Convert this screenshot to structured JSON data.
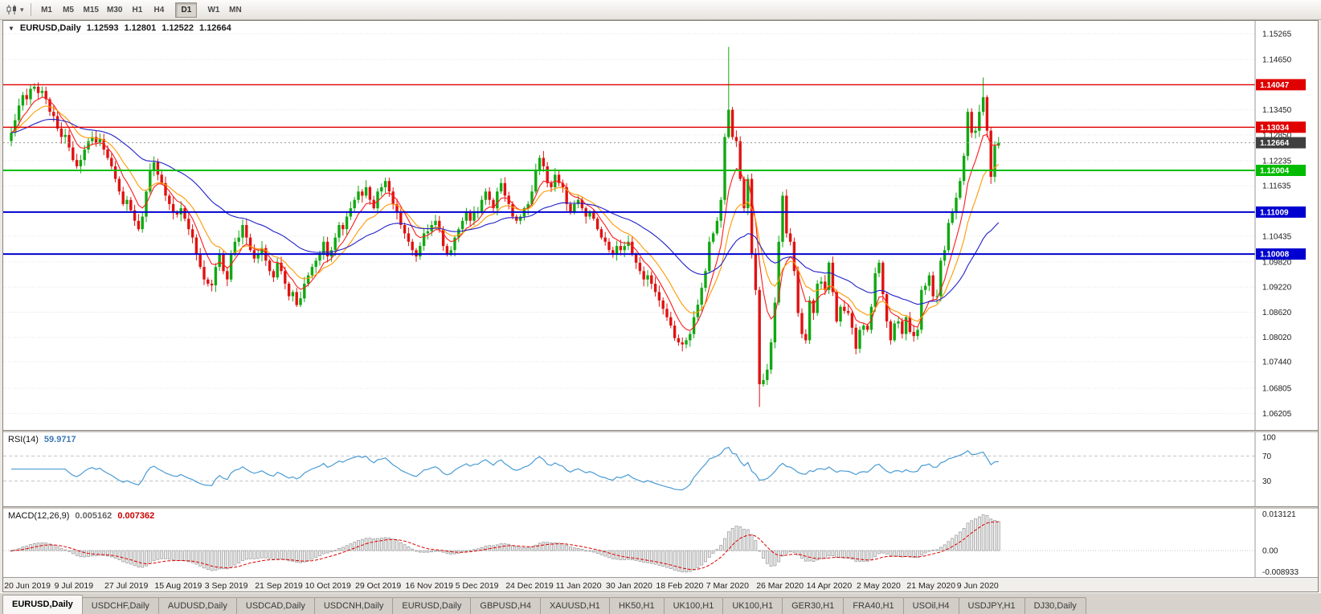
{
  "toolbar": {
    "chart_icon": "candlestick-chart-icon",
    "dropdown_icon": "▾",
    "timeframes": [
      "M1",
      "M5",
      "M15",
      "M30",
      "H1",
      "H4",
      "D1",
      "W1",
      "MN"
    ],
    "active_timeframe": "D1"
  },
  "main_header": {
    "dropdown_icon": "▼",
    "symbol": "EURUSD,Daily",
    "open": "1.12593",
    "high": "1.12801",
    "low": "1.12522",
    "close": "1.12664"
  },
  "tabs": {
    "active_index": 0,
    "items": [
      "EURUSD,Daily",
      "USDCHF,Daily",
      "AUDUSD,Daily",
      "USDCAD,Daily",
      "USDCNH,Daily",
      "EURUSD,Daily",
      "GBPUSD,H4",
      "XAUUSD,H1",
      "HK50,H1",
      "UK100,H1",
      "UK100,H1",
      "GER30,H1",
      "FRA40,H1",
      "USOil,H4",
      "USDJPY,H1",
      "DJ30,Daily"
    ],
    "note": "bottom chart tabs"
  },
  "chart_data": {
    "type": "candlestick",
    "symbol": "EURUSD",
    "timeframe": "Daily",
    "current": {
      "open": 1.12593,
      "high": 1.12801,
      "low": 1.12522,
      "close": 1.12664
    },
    "up_color": "#11a811",
    "down_color": "#e01212",
    "price_range": {
      "top": 1.1557,
      "bottom": 1.0581
    },
    "price_axis_labels": [
      1.15265,
      1.1465,
      1.1345,
      1.1285,
      1.12235,
      1.11635,
      1.10435,
      1.0982,
      1.0922,
      1.0862,
      1.0802,
      1.0744,
      1.06805,
      1.06205
    ],
    "horizontal_lines": [
      {
        "price": 1.14047,
        "color": "#e00000",
        "style": "solid",
        "width": 1.4
      },
      {
        "price": 1.13034,
        "color": "#e00000",
        "style": "solid",
        "width": 1.4
      },
      {
        "price": 1.12664,
        "color": "#9a9a9a",
        "style": "dotted",
        "width": 1,
        "tag_color": "#3f3f3f",
        "is_current_price": true
      },
      {
        "price": 1.12004,
        "color": "#00bb00",
        "style": "solid",
        "width": 2
      },
      {
        "price": 1.11009,
        "color": "#0000d0",
        "style": "solid",
        "width": 2
      },
      {
        "price": 1.10008,
        "color": "#0000d0",
        "style": "solid",
        "width": 2
      }
    ],
    "date_ticks": {
      "first_index": 4,
      "step": 13,
      "labels": [
        "20 Jun 2019",
        "9 Jul 2019",
        "27 Jul 2019",
        "15 Aug 2019",
        "3 Sep 2019",
        "21 Sep 2019",
        "10 Oct 2019",
        "29 Oct 2019",
        "16 Nov 2019",
        "5 Dec 2019",
        "24 Dec 2019",
        "11 Jan 2020",
        "30 Jan 2020",
        "18 Feb 2020",
        "7 Mar 2020",
        "26 Mar 2020",
        "14 Apr 2020",
        "2 May 2020",
        "21 May 2020",
        "9 Jun 2020"
      ]
    },
    "first_open": 1.127,
    "closes": [
      1.129,
      1.132,
      1.1355,
      1.138,
      1.137,
      1.1395,
      1.14,
      1.1385,
      1.139,
      1.137,
      1.134,
      1.133,
      1.13,
      1.128,
      1.1285,
      1.1255,
      1.1225,
      1.121,
      1.1225,
      1.125,
      1.127,
      1.128,
      1.1265,
      1.1275,
      1.125,
      1.123,
      1.121,
      1.118,
      1.115,
      1.112,
      1.113,
      1.1105,
      1.108,
      1.106,
      1.109,
      1.115,
      1.12,
      1.122,
      1.119,
      1.117,
      1.114,
      1.112,
      1.11,
      1.1095,
      1.111,
      1.1085,
      1.106,
      1.104,
      1.1,
      1.097,
      1.094,
      1.093,
      1.0926,
      1.097,
      1.1,
      1.096,
      1.094,
      1.1,
      1.103,
      1.104,
      1.107,
      1.104,
      1.101,
      1.099,
      1.1,
      1.1015,
      1.0985,
      1.096,
      1.0945,
      1.098,
      1.096,
      1.093,
      1.09,
      1.091,
      1.0879,
      1.0895,
      1.093,
      1.095,
      1.097,
      1.0985,
      1.1,
      1.103,
      1.0995,
      1.101,
      1.104,
      1.107,
      1.106,
      1.109,
      1.111,
      1.113,
      1.115,
      1.114,
      1.116,
      1.113,
      1.111,
      1.115,
      1.116,
      1.1175,
      1.115,
      1.112,
      1.11,
      1.107,
      1.105,
      1.103,
      1.101,
      1.0995,
      1.102,
      1.105,
      1.1055,
      1.107,
      1.108,
      1.106,
      1.102,
      1.1,
      1.101,
      1.104,
      1.106,
      1.108,
      1.11,
      1.108,
      1.11,
      1.11,
      1.113,
      1.115,
      1.113,
      1.111,
      1.115,
      1.117,
      1.114,
      1.112,
      1.109,
      1.108,
      1.109,
      1.111,
      1.112,
      1.115,
      1.12,
      1.123,
      1.121,
      1.117,
      1.116,
      1.119,
      1.117,
      1.116,
      1.112,
      1.11,
      1.112,
      1.113,
      1.111,
      1.109,
      1.11,
      1.1085,
      1.106,
      1.104,
      1.103,
      1.101,
      1.1,
      1.102,
      1.101,
      1.102,
      1.103,
      1.1,
      1.098,
      1.096,
      1.094,
      1.095,
      1.093,
      1.091,
      1.089,
      1.087,
      1.085,
      1.083,
      1.08,
      1.079,
      1.0785,
      1.0795,
      1.081,
      1.085,
      1.088,
      1.092,
      1.096,
      1.103,
      1.105,
      1.108,
      1.113,
      1.128,
      1.1345,
      1.128,
      1.127,
      1.118,
      1.111,
      1.118,
      1.1,
      1.0915,
      1.069,
      1.07,
      1.0725,
      1.079,
      1.0885,
      1.103,
      1.114,
      1.105,
      1.103,
      1.096,
      1.086,
      1.081,
      1.0795,
      1.089,
      1.086,
      1.093,
      1.0935,
      1.0915,
      1.098,
      1.091,
      1.084,
      1.0875,
      1.0865,
      1.086,
      1.0825,
      1.0775,
      1.082,
      1.083,
      1.082,
      1.0875,
      1.0955,
      1.098,
      1.0905,
      1.084,
      1.0795,
      1.0835,
      1.084,
      1.081,
      1.085,
      1.0815,
      1.0805,
      1.082,
      1.0915,
      1.0925,
      1.095,
      1.09,
      1.09,
      1.0985,
      1.101,
      1.1075,
      1.11,
      1.1135,
      1.1175,
      1.1235,
      1.134,
      1.129,
      1.1295,
      1.134,
      1.1375,
      1.1295,
      1.1185,
      1.1259,
      1.12664
    ],
    "wick_overrides": {
      "186": {
        "high": 1.1495
      },
      "194": {
        "low": 1.0636
      },
      "252": {
        "high": 1.1422
      }
    },
    "moving_averages": [
      {
        "name": "fast",
        "type": "EMA",
        "period": 7,
        "color": "#ff1a1a"
      },
      {
        "name": "mid",
        "type": "EMA",
        "period": 14,
        "color": "#ff9900"
      },
      {
        "name": "slow",
        "type": "EMA",
        "period": 40,
        "color": "#2020c8"
      }
    ],
    "indicators": {
      "rsi": {
        "label": "RSI(14)",
        "period": 14,
        "value_text": "59.9717",
        "levels": [
          100,
          70,
          30
        ],
        "dashed_levels": [
          70,
          30
        ],
        "line_color": "#4a9bd4"
      },
      "macd": {
        "label": "MACD(12,26,9)",
        "fast": 12,
        "slow": 26,
        "signal": 9,
        "value_text": "0.005162",
        "signal_text": "0.007362",
        "axis_labels": [
          "0.013121",
          "0.00",
          "-0.008933"
        ],
        "histogram_color": "#a0a0a0",
        "signal_color": "#dd0000"
      }
    }
  }
}
